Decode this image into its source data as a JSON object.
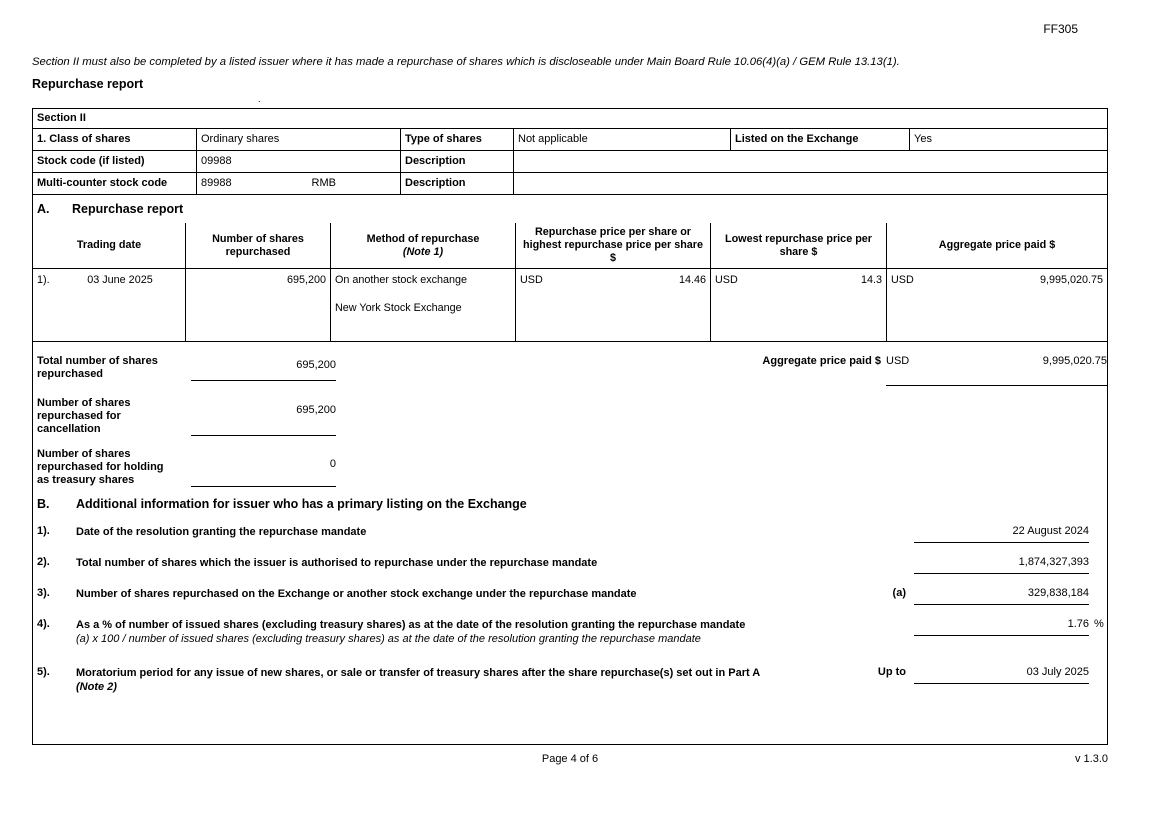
{
  "page": {
    "form_code": "FF305",
    "intro": "Section II must also be completed by a listed issuer where it has made a repurchase of shares which is discloseable under Main Board Rule 10.06(4)(a) / GEM Rule 13.13(1).",
    "title": "Repurchase report",
    "stray_mark": ".",
    "footer_page": "Page 4 of 6",
    "footer_version": "v 1.3.0"
  },
  "section2": {
    "heading": "Section II",
    "row1": {
      "class_label": "1. Class of shares",
      "class_value": "Ordinary shares",
      "type_label": "Type of shares",
      "type_value": "Not applicable",
      "listed_label": "Listed on the Exchange",
      "listed_value": "Yes"
    },
    "row2": {
      "label": "Stock code (if listed)",
      "value": "09988",
      "desc_label": "Description",
      "desc_value": ""
    },
    "row3": {
      "label": "Multi-counter stock code",
      "value": "89988",
      "currency": "RMB",
      "desc_label": "Description",
      "desc_value": ""
    }
  },
  "sectionA": {
    "letter": "A.",
    "title": "Repurchase report",
    "columns": {
      "trading_date": "Trading date",
      "num_shares": "Number of shares repurchased",
      "method_line1": "Method of repurchase",
      "method_line2": "(Note 1)",
      "price_high": "Repurchase price per share or highest repurchase price per share $",
      "price_low": "Lowest repurchase price per share $",
      "aggregate": "Aggregate price paid $"
    },
    "row": {
      "index": "1).",
      "trading_date": "03 June 2025",
      "shares": "695,200",
      "method_line1": "On another stock exchange",
      "method_line2": "New York Stock Exchange",
      "price_currency": "USD",
      "price_value": "14.46",
      "low_currency": "USD",
      "low_value": "14.3",
      "agg_currency": "USD",
      "agg_value": "9,995,020.75"
    },
    "totals": {
      "total_label": "Total number of shares repurchased",
      "total_value": "695,200",
      "agg_label": "Aggregate price paid $",
      "agg_currency": "USD",
      "agg_value": "9,995,020.75",
      "cancel_label": "Number of shares repurchased for cancellation",
      "cancel_value": "695,200",
      "treasury_label": "Number of shares repurchased for holding as treasury shares",
      "treasury_value": "0"
    }
  },
  "sectionB": {
    "letter": "B.",
    "title": "Additional information for issuer who has a primary listing on the Exchange",
    "items": [
      {
        "num": "1).",
        "text": "Date of the resolution granting the repurchase mandate",
        "value": "22 August 2024"
      },
      {
        "num": "2).",
        "text": "Total number of shares which the issuer is authorised to repurchase under the repurchase mandate",
        "value": "1,874,327,393"
      },
      {
        "num": "3).",
        "text": "Number of shares repurchased on the Exchange or another stock exchange under the repurchase mandate",
        "prefix": "(a)",
        "value": "329,838,184"
      },
      {
        "num": "4).",
        "text": "As a % of number of issued shares (excluding treasury shares) as at the date of the resolution granting the repurchase mandate",
        "subtext": "(a) x 100 / number of issued shares (excluding treasury shares) as at the date of the resolution granting the repurchase mandate",
        "value": "1.76",
        "suffix": "%"
      },
      {
        "num": "5).",
        "text": "Moratorium period for any issue of new shares, or sale or transfer of treasury shares after the share repurchase(s) set out in Part A",
        "subtext": "(Note 2)",
        "prefix": "Up to",
        "value": "03 July 2025"
      }
    ]
  }
}
